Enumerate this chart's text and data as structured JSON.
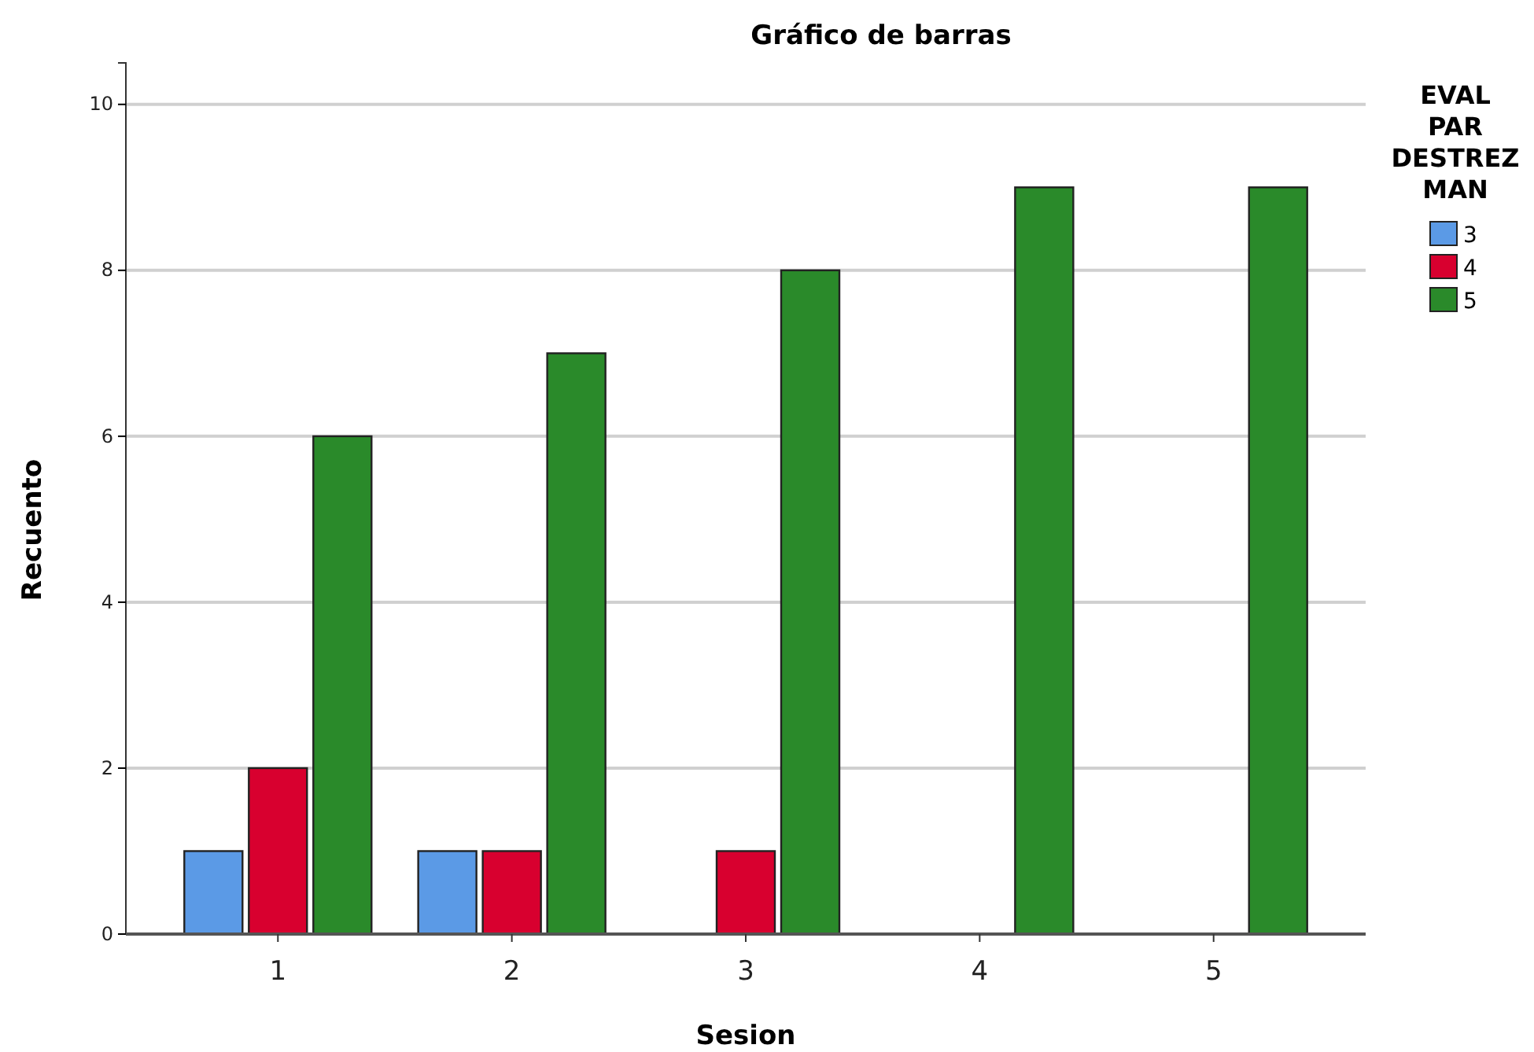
{
  "chart_data": {
    "type": "bar",
    "title": "Gráfico de barras",
    "xlabel": "Sesion",
    "ylabel": "Recuento",
    "legend_title": "EVAL PAR DESTREZ MAN",
    "categories": [
      "1",
      "2",
      "3",
      "4",
      "5"
    ],
    "series": [
      {
        "name": "3",
        "color": "#5b9ae6",
        "values": [
          1,
          1,
          null,
          null,
          null
        ]
      },
      {
        "name": "4",
        "color": "#d8002f",
        "values": [
          2,
          1,
          1,
          null,
          null
        ]
      },
      {
        "name": "5",
        "color": "#2a8a2a",
        "values": [
          6,
          7,
          8,
          9,
          9
        ]
      }
    ],
    "ylim": [
      0,
      10.5
    ],
    "yticks": [
      0,
      2,
      4,
      6,
      8,
      10
    ],
    "grid": "y",
    "legend": "top right"
  }
}
